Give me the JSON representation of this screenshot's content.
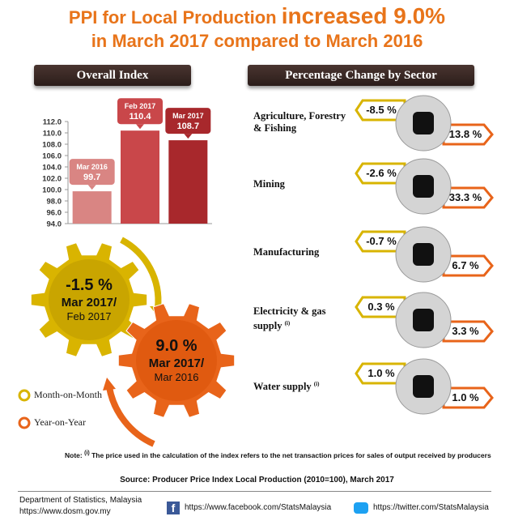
{
  "title": {
    "part1": "PPI for Local Production ",
    "part2": "increased 9.0%",
    "line2": "in March 2017 compared to March 2016"
  },
  "overall_header": "Overall Index",
  "chart_data": {
    "type": "bar",
    "categories": [
      "Mar 2016",
      "Feb 2017",
      "Mar 2017"
    ],
    "values": [
      99.7,
      110.4,
      108.7
    ],
    "colors": [
      "#d98583",
      "#c9474a",
      "#a8282c"
    ],
    "ylim": [
      94,
      112
    ],
    "yticks": [
      {
        "value": 94,
        "label": "94.0"
      },
      {
        "value": 96,
        "label": "96.0"
      },
      {
        "value": 98,
        "label": "98.0"
      },
      {
        "value": 100,
        "label": "100.0"
      },
      {
        "value": 102,
        "label": "102.0"
      },
      {
        "value": 104,
        "label": "104.0"
      },
      {
        "value": 106,
        "label": "106.0"
      },
      {
        "value": 108,
        "label": "108.0"
      },
      {
        "value": 110,
        "label": "110.0"
      },
      {
        "value": 112,
        "label": "112.0"
      }
    ]
  },
  "gears": [
    {
      "change": "-1.5 %",
      "line1": "Mar 2017/",
      "line2": "Feb 2017"
    },
    {
      "change": "9.0 %",
      "line1": "Mar 2017/",
      "line2": "Mar 2016"
    }
  ],
  "legend": [
    "Month-on-Month",
    "Year-on-Year"
  ],
  "sector_header": "Percentage Change by Sector",
  "sectors": [
    {
      "name": "Agriculture, Forestry & Fishing",
      "mom": "-8.5 %",
      "yoy": "13.8 %"
    },
    {
      "name": "Mining",
      "mom": "-2.6 %",
      "yoy": "33.3 %"
    },
    {
      "name": "Manufacturing",
      "mom": "-0.7 %",
      "yoy": "6.7 %"
    },
    {
      "name": "Electricity & gas supply",
      "note": "(i)",
      "mom": "0.3 %",
      "yoy": "3.3 %"
    },
    {
      "name": "Water supply",
      "note": "(i)",
      "mom": "1.0 %",
      "yoy": "1.0 %"
    }
  ],
  "note": {
    "label": "Note:",
    "mark": "(i)",
    "text": " The price used in the calculation of the index refers to the net transaction prices for sales of output received by producers"
  },
  "source": "Source: Producer Price Index Local Production (2010=100), March 2017",
  "footer": {
    "org": "Department of Statistics, Malaysia",
    "url": "https://www.dosm.gov.my",
    "facebook": "https://www.facebook.com/StatsMalaysia",
    "twitter": "https://twitter.com/StatsMalaysia"
  }
}
